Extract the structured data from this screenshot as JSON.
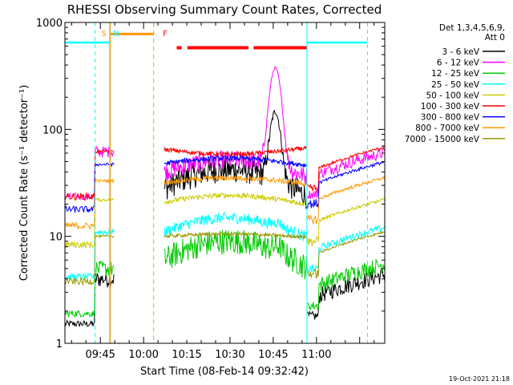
{
  "chart_data": {
    "type": "line",
    "title": "RHESSI Observing Summary Count Rates, Corrected",
    "xlabel": "Start Time (08-Feb-14 09:32:42)",
    "ylabel": "Corrected Count Rate (s⁻¹ detector⁻¹)",
    "yscale": "log",
    "ylim": [
      1,
      1000
    ],
    "xlim_minutes": [
      0,
      111
    ],
    "x_unit": "minutes after 09:32:42",
    "x_ticks": [
      {
        "min": 12.3,
        "label": "09:45"
      },
      {
        "min": 27.3,
        "label": "10:00"
      },
      {
        "min": 42.3,
        "label": "10:15"
      },
      {
        "min": 57.3,
        "label": "10:30"
      },
      {
        "min": 72.3,
        "label": "10:45"
      },
      {
        "min": 87.3,
        "label": "11:00"
      }
    ],
    "y_ticks": [
      {
        "v": 1,
        "label": "1"
      },
      {
        "v": 10,
        "label": "10"
      },
      {
        "v": 100,
        "label": "100"
      },
      {
        "v": 1000,
        "label": "1000"
      }
    ],
    "legend_header": [
      "Det 1,3,4,5,6,9,",
      "Att 0"
    ],
    "legend_position": "right",
    "timestamp": "19-Oct-2021 21:18",
    "series": [
      {
        "name": "3 - 6 keV",
        "color": "#000000",
        "pre": 4,
        "post": 4,
        "base": 28,
        "noise": 0.35,
        "bump": 0.5,
        "peak_min": 73,
        "peak_val": 140,
        "peak_w": 2.2
      },
      {
        "name": "6 - 12 keV",
        "color": "#ff00ff",
        "pre": 62,
        "post": 55,
        "base": 40,
        "noise": 0.25,
        "bump": 0.3,
        "peak_min": 73,
        "peak_val": 370,
        "peak_w": 2.4
      },
      {
        "name": "12 - 25 keV",
        "color": "#00cc00",
        "pre": 5,
        "post": 5,
        "base": 6,
        "noise": 0.35,
        "bump": 0.5,
        "peak_min": 74,
        "peak_val": 7,
        "peak_w": 2
      },
      {
        "name": "25 - 50 keV",
        "color": "#00ffff",
        "pre": 11,
        "post": 11,
        "base": 11,
        "noise": 0.15,
        "bump": 0.35,
        "peak_min": 74,
        "peak_val": 12,
        "peak_w": 2
      },
      {
        "name": "50 - 100 keV",
        "color": "#cccc00",
        "pre": 22,
        "post": 20,
        "base": 21,
        "noise": 0.07,
        "bump": 0.15,
        "peak_min": 74,
        "peak_val": 21,
        "peak_w": 2
      },
      {
        "name": "100 - 300 keV",
        "color": "#ff0000",
        "pre": 62,
        "post": 62,
        "base": 65,
        "noise": 0.06,
        "bump": -0.1,
        "peak_min": 74,
        "peak_val": 65,
        "peak_w": 2
      },
      {
        "name": "300 - 800 keV",
        "color": "#0000ff",
        "pre": 47,
        "post": 45,
        "base": 48,
        "noise": 0.07,
        "bump": 0.12,
        "peak_min": 74,
        "peak_val": 48,
        "peak_w": 2
      },
      {
        "name": "800 - 7000 keV",
        "color": "#ff9900",
        "pre": 33,
        "post": 32,
        "base": 32,
        "noise": 0.07,
        "bump": 0.1,
        "peak_min": 74,
        "peak_val": 32,
        "peak_w": 2
      },
      {
        "name": "7000 - 15000 keV",
        "color": "#999900",
        "pre": 10,
        "post": 10,
        "base": 10,
        "noise": 0.05,
        "bump": 0.05,
        "peak_min": 74,
        "peak_val": 10,
        "peak_w": 2
      }
    ],
    "saa_intervals_min": [
      [
        0,
        15.5
      ],
      [
        84,
        105
      ]
    ],
    "night_intervals_min": [
      [
        15.8,
        30.8
      ]
    ],
    "flare_intervals_min": [
      [
        38.8,
        40.5
      ],
      [
        42.5,
        63.7
      ],
      [
        65.5,
        84
      ]
    ],
    "markers": [
      {
        "label": "S",
        "min": 13.5,
        "color": "#ff9900"
      },
      {
        "label": "N",
        "min": 17.8,
        "color": "#00ffff"
      },
      {
        "label": "F",
        "min": 34.8,
        "color": "#ff0000"
      }
    ],
    "saa_level": 650,
    "night_level": 780,
    "flare_level": 580,
    "data_gaps_min": [
      [
        17,
        34.5
      ]
    ],
    "flare_peak_min": 74
  }
}
